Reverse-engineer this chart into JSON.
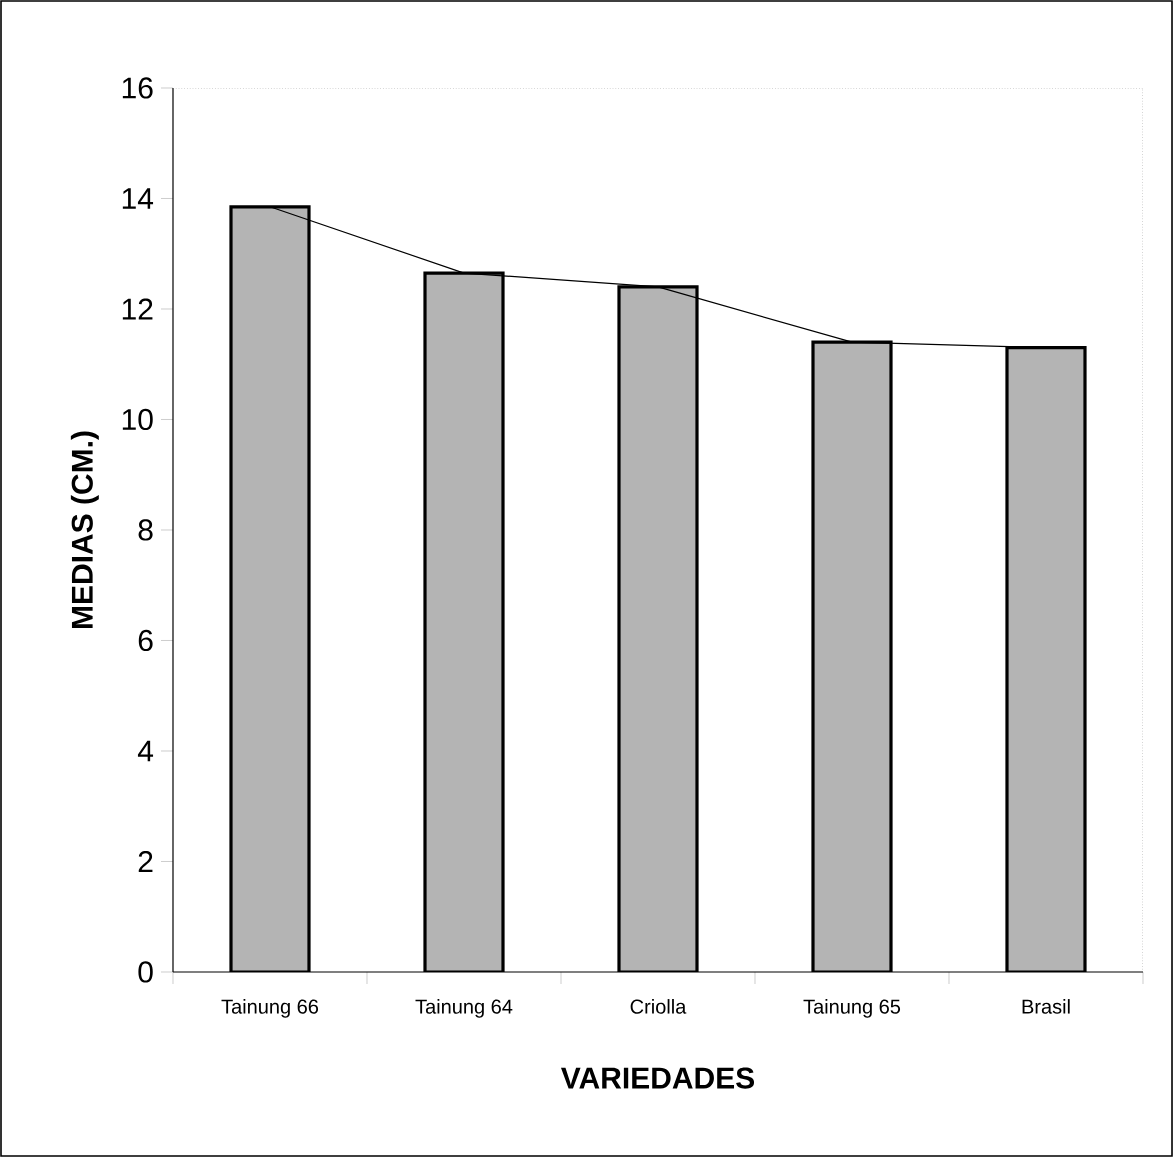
{
  "chart_data": {
    "type": "bar",
    "xlabel": "VARIEDADES",
    "ylabel": "MEDIAS (CM.)",
    "categories": [
      "Tainung 66",
      "Tainung 64",
      "Criolla",
      "Tainung 65",
      "Brasil"
    ],
    "series": [
      {
        "color": "#b4b4b4",
        "values": [
          13.85,
          12.65,
          12.4,
          11.4,
          11.3
        ]
      },
      {
        "type": "line",
        "color": "#000000",
        "values": [
          13.85,
          12.65,
          12.4,
          11.4,
          11.3
        ]
      }
    ],
    "ylim": [
      0,
      16
    ],
    "yticks": [
      0,
      2,
      4,
      6,
      8,
      10,
      12,
      14,
      16
    ]
  }
}
